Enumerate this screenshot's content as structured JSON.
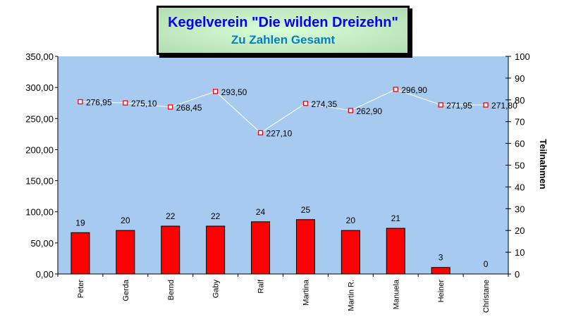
{
  "chart_data": {
    "type": "bar+line",
    "title": "Kegelverein \"Die wilden Dreizehn\"",
    "subtitle": "Zu Zahlen Gesamt",
    "categories": [
      "Peter",
      "Gerda",
      "Bernd",
      "Gaby",
      "Ralf",
      "Martina",
      "Martin R.",
      "Manuela",
      "Heiner",
      "Christane"
    ],
    "bar_series": {
      "axis": "right",
      "color": "#ff0000",
      "values": [
        19,
        20,
        22,
        22,
        24,
        25,
        20,
        21,
        3,
        0
      ]
    },
    "line_series": {
      "axis": "left",
      "color": "#ffffff",
      "marker_color": "#ff0000",
      "values": [
        276.95,
        275.1,
        268.45,
        293.5,
        227.1,
        274.35,
        262.9,
        296.9,
        271.95,
        271.8
      ],
      "labels": [
        "276,95",
        "275,10",
        "268,45",
        "293,50",
        "227,10",
        "274,35",
        "262,90",
        "296,90",
        "271,95",
        "271,80"
      ]
    },
    "left_axis": {
      "range": [
        0,
        350
      ],
      "ticks": [
        "0,00",
        "50,00",
        "100,00",
        "150,00",
        "200,00",
        "250,00",
        "300,00",
        "350,00"
      ]
    },
    "right_axis": {
      "range": [
        0,
        100
      ],
      "label": "Teilnahmen",
      "ticks": [
        "0",
        "10",
        "20",
        "30",
        "40",
        "50",
        "60",
        "70",
        "80",
        "90",
        "100"
      ]
    },
    "plot_background": "#a6caf0",
    "grid": false
  }
}
